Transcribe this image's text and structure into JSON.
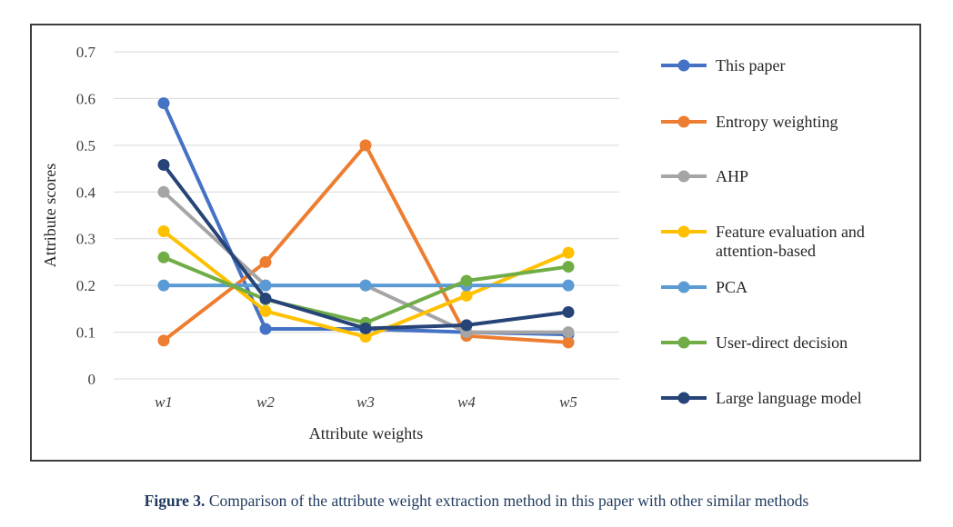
{
  "chart_data": {
    "type": "line",
    "categories": [
      "w1",
      "w2",
      "w3",
      "w4",
      "w5"
    ],
    "xlabel": "Attribute weights",
    "ylabel": "Attribute scores",
    "ylim": [
      0,
      0.7
    ],
    "yticks": [
      "0",
      "0.1",
      "0.2",
      "0.3",
      "0.4",
      "0.5",
      "0.6",
      "0.7"
    ],
    "grid": "horizontal",
    "legend_position": "right",
    "series": [
      {
        "name": "This paper",
        "color": "#4472c4",
        "values": [
          0.59,
          0.107,
          0.107,
          0.1,
          0.095
        ]
      },
      {
        "name": "Entropy weighting",
        "color": "#ed7d31",
        "values": [
          0.082,
          0.25,
          0.5,
          0.092,
          0.078
        ]
      },
      {
        "name": "AHP",
        "color": "#a5a5a5",
        "values": [
          0.4,
          0.2,
          0.2,
          0.1,
          0.1
        ]
      },
      {
        "name": "Feature evaluation and attention-based",
        "color": "#ffc000",
        "values": [
          0.316,
          0.145,
          0.09,
          0.178,
          0.27
        ]
      },
      {
        "name": "PCA",
        "color": "#5b9bd5",
        "values": [
          0.2,
          0.2,
          0.2,
          0.2,
          0.2
        ]
      },
      {
        "name": "User-direct decision",
        "color": "#70ad47",
        "values": [
          0.26,
          0.17,
          0.12,
          0.21,
          0.24
        ]
      },
      {
        "name": "Large language model",
        "color": "#264478",
        "values": [
          0.458,
          0.172,
          0.108,
          0.115,
          0.143
        ]
      }
    ]
  },
  "caption": {
    "label": "Figure 3.",
    "text": " Comparison of the attribute weight extraction method in this paper with other similar methods"
  }
}
